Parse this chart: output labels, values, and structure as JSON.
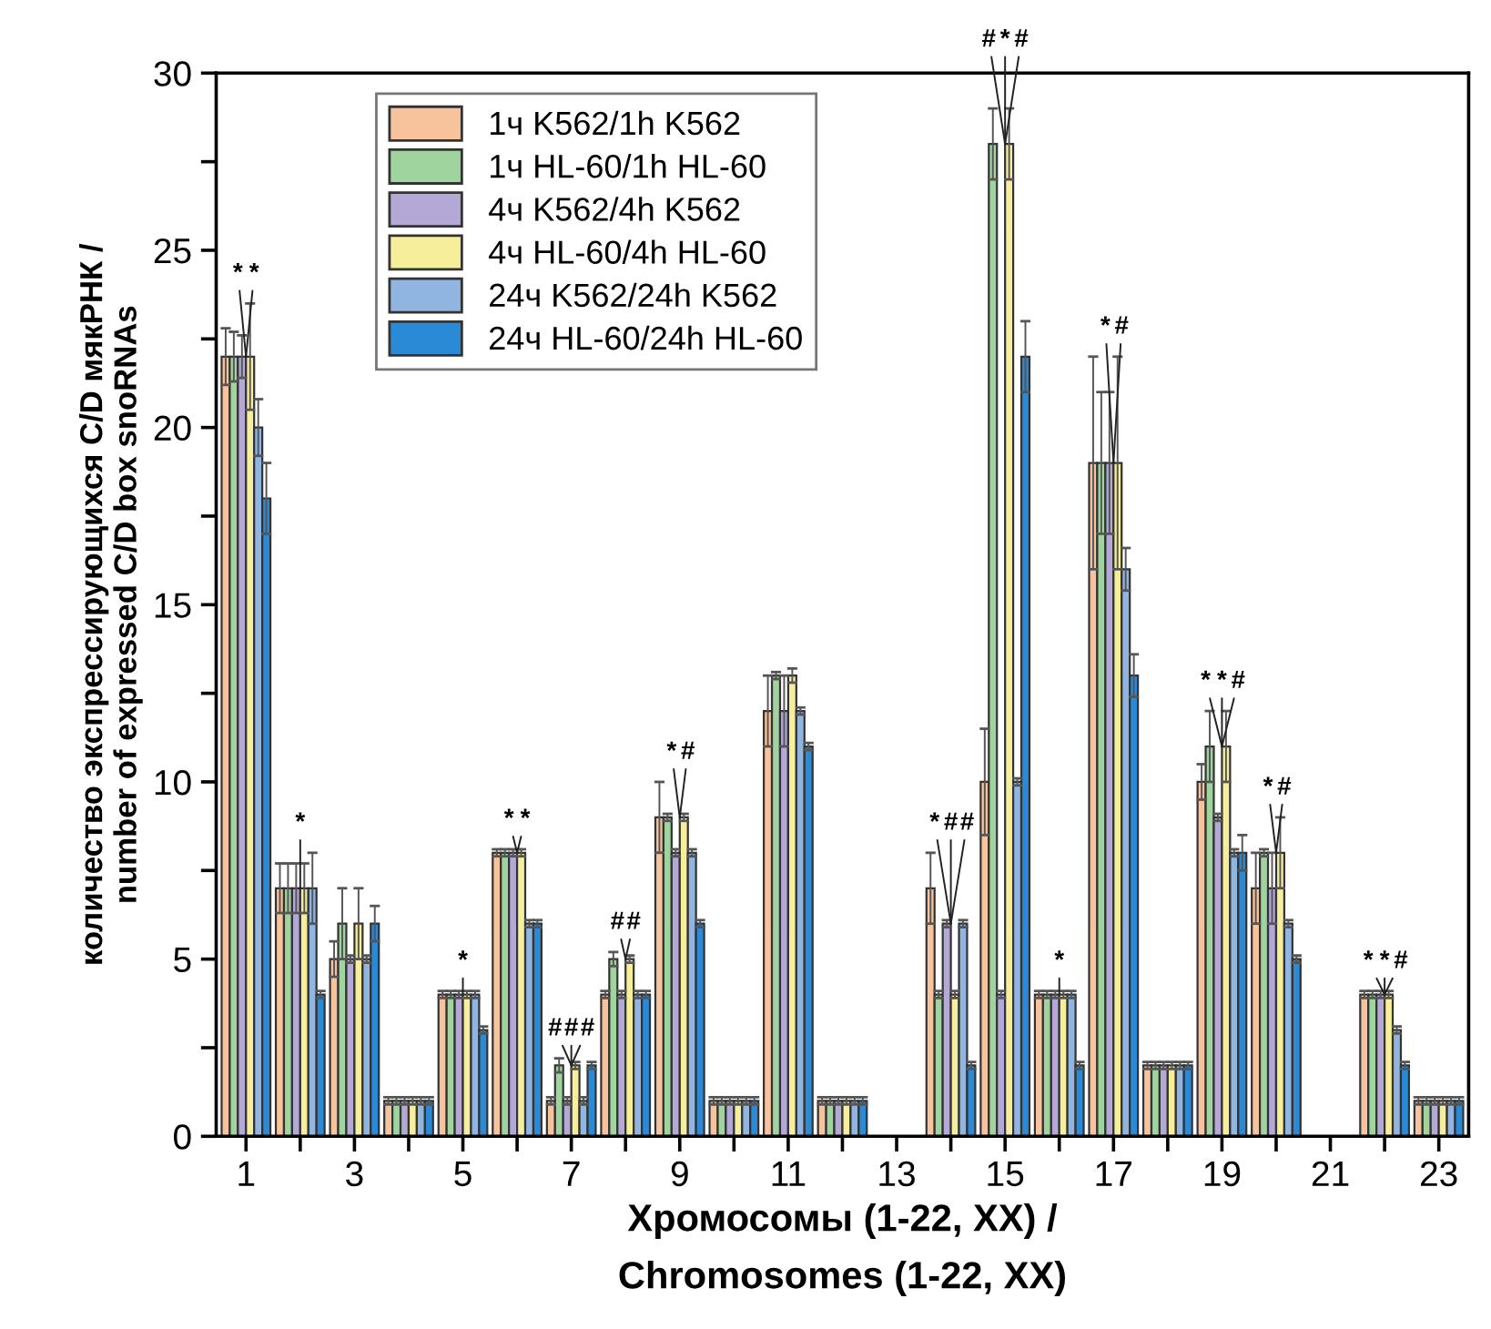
{
  "chart_data": {
    "type": "bar",
    "xlabel": "Хромосомы (1-22, XX) /\nChromosomes (1-22, XX)",
    "ylabel": "количество экспрессирующихся C/D мякРНК /\nnumber of expressed C/D box snoRNAs",
    "x": [
      1,
      2,
      3,
      4,
      5,
      6,
      7,
      8,
      9,
      10,
      11,
      12,
      13,
      14,
      15,
      16,
      17,
      18,
      19,
      20,
      21,
      22,
      23
    ],
    "xlim": [
      0.45,
      23.55
    ],
    "xticks": [
      1,
      {
        "value": 2,
        "label": null
      },
      3,
      {
        "value": 4,
        "label": null
      },
      5,
      {
        "value": 6,
        "label": null
      },
      7,
      {
        "value": 8,
        "label": null
      },
      9,
      {
        "value": 10,
        "label": null
      },
      11,
      {
        "value": 12,
        "label": null
      },
      13,
      {
        "value": 14,
        "label": null
      },
      15,
      {
        "value": 16,
        "label": null
      },
      17,
      {
        "value": 18,
        "label": null
      },
      19,
      {
        "value": 20,
        "label": null
      },
      21,
      {
        "value": 22,
        "label": null
      },
      23
    ],
    "ylim": [
      0,
      30
    ],
    "yticks": [
      0,
      {
        "value": 2.5,
        "label": null
      },
      5,
      {
        "value": 7.5,
        "label": null
      },
      10,
      {
        "value": 12.5,
        "label": null
      },
      15,
      {
        "value": 17.5,
        "label": null
      },
      20,
      {
        "value": 22.5,
        "label": null
      },
      25,
      {
        "value": 27.5,
        "label": null
      },
      30
    ],
    "grid": false,
    "legend": "top left",
    "series": [
      {
        "name": "1ч K562/1h K562",
        "color": "#f7c39c",
        "values": [
          22,
          7,
          5,
          1,
          4,
          8,
          1,
          4,
          9,
          1,
          12,
          1,
          null,
          7,
          10,
          4,
          19,
          2,
          10,
          7,
          null,
          4,
          1
        ],
        "errors": [
          0.8,
          0.7,
          0.5,
          0.1,
          0.1,
          0.1,
          0.1,
          0.1,
          1,
          0.1,
          1,
          0.1,
          null,
          1,
          1.5,
          0.1,
          3,
          0.1,
          0.5,
          1,
          null,
          0.1,
          0.1
        ]
      },
      {
        "name": "1ч HL-60/1h HL-60",
        "color": "#9fd49f",
        "values": [
          22,
          7,
          6,
          1,
          4,
          8,
          2,
          5,
          9,
          1,
          13,
          1,
          null,
          4,
          28,
          4,
          19,
          2,
          11,
          8,
          null,
          4,
          1
        ],
        "errors": [
          0.7,
          0.7,
          1,
          0.1,
          0.1,
          0.1,
          0.2,
          0.2,
          0.1,
          0.1,
          0.1,
          0.1,
          null,
          0.1,
          1,
          0.1,
          2,
          0.1,
          1,
          0.1,
          null,
          0.1,
          0.1
        ]
      },
      {
        "name": "4ч K562/4h K562",
        "color": "#b3a8d6",
        "values": [
          22,
          7,
          5,
          1,
          4,
          8,
          1,
          4,
          8,
          1,
          12,
          1,
          null,
          6,
          4,
          4,
          19,
          2,
          9,
          7,
          null,
          4,
          1
        ],
        "errors": [
          0.6,
          0.7,
          0.1,
          0.1,
          0.1,
          0.1,
          0.1,
          0.1,
          0.1,
          0.1,
          1,
          0.1,
          null,
          0.1,
          0.1,
          0.1,
          2,
          0.1,
          0.1,
          1,
          null,
          0.1,
          0.1
        ]
      },
      {
        "name": "4ч HL-60/4h HL-60",
        "color": "#f7ee9c",
        "values": [
          22,
          7,
          6,
          1,
          4,
          8,
          2,
          5,
          9,
          1,
          13,
          1,
          null,
          4,
          28,
          4,
          19,
          2,
          11,
          8,
          null,
          4,
          1
        ],
        "errors": [
          1.5,
          0.7,
          1,
          0.1,
          0.1,
          0.1,
          0.1,
          0.1,
          0.1,
          0.1,
          0.2,
          0.1,
          null,
          0.1,
          1,
          0.1,
          3,
          0.1,
          1,
          1,
          null,
          0.1,
          0.1
        ]
      },
      {
        "name": "24ч K562/24h K562",
        "color": "#8fb5e0",
        "values": [
          20,
          7,
          5,
          1,
          4,
          6,
          1,
          4,
          8,
          1,
          12,
          1,
          null,
          6,
          10,
          4,
          16,
          2,
          8,
          6,
          null,
          3,
          1
        ],
        "errors": [
          0.8,
          1,
          0.1,
          0.1,
          0.1,
          0.1,
          0.1,
          0.1,
          0.1,
          0.1,
          0.1,
          0.1,
          null,
          0.1,
          0.1,
          0.1,
          0.6,
          0.1,
          0.1,
          0.1,
          null,
          0.1,
          0.1
        ]
      },
      {
        "name": "24ч HL-60/24h HL-60",
        "color": "#2b8ad6",
        "values": [
          18,
          4,
          6,
          1,
          3,
          6,
          2,
          4,
          6,
          1,
          11,
          1,
          null,
          2,
          22,
          2,
          13,
          2,
          8,
          5,
          null,
          2,
          1
        ],
        "errors": [
          1,
          0.1,
          0.5,
          0.1,
          0.1,
          0.1,
          0.1,
          0.1,
          0.1,
          0.1,
          0.1,
          0.1,
          null,
          0.1,
          1,
          0.1,
          0.6,
          0.1,
          0.5,
          0.1,
          null,
          0.1,
          0.1
        ]
      }
    ],
    "annotations": [
      {
        "text": "*",
        "x": 1,
        "y": 22
      },
      {
        "text": "*",
        "x": 1,
        "y": 22
      },
      {
        "text": "*",
        "x": 2,
        "y": 7
      },
      {
        "text": "*",
        "x": 5,
        "y": 4
      },
      {
        "text": "*",
        "x": 6,
        "y": 8
      },
      {
        "text": "*",
        "x": 6,
        "y": 8
      },
      {
        "text": "#",
        "x": 7,
        "y": 2
      },
      {
        "text": "#",
        "x": 7,
        "y": 2
      },
      {
        "text": "#",
        "x": 7,
        "y": 2
      },
      {
        "text": "#",
        "x": 8,
        "y": 5
      },
      {
        "text": "#",
        "x": 8,
        "y": 5
      },
      {
        "text": "*",
        "x": 9,
        "y": 9
      },
      {
        "text": "#",
        "x": 9,
        "y": 9
      },
      {
        "text": "*",
        "x": 14,
        "y": 6
      },
      {
        "text": "#",
        "x": 14,
        "y": 6
      },
      {
        "text": "#",
        "x": 14,
        "y": 6
      },
      {
        "text": "#",
        "x": 15,
        "y": 28
      },
      {
        "text": "*",
        "x": 15,
        "y": 28
      },
      {
        "text": "#",
        "x": 15,
        "y": 28
      },
      {
        "text": "*",
        "x": 16,
        "y": 4
      },
      {
        "text": "*",
        "x": 17,
        "y": 19
      },
      {
        "text": "#",
        "x": 17,
        "y": 19
      },
      {
        "text": "*",
        "x": 19,
        "y": 11
      },
      {
        "text": "*",
        "x": 19,
        "y": 11
      },
      {
        "text": "#",
        "x": 19,
        "y": 11
      },
      {
        "text": "*",
        "x": 20,
        "y": 8
      },
      {
        "text": "#",
        "x": 20,
        "y": 8
      },
      {
        "text": "*",
        "x": 22,
        "y": 4
      },
      {
        "text": "*",
        "x": 22,
        "y": 4
      },
      {
        "text": "#",
        "x": 22,
        "y": 4
      }
    ]
  }
}
